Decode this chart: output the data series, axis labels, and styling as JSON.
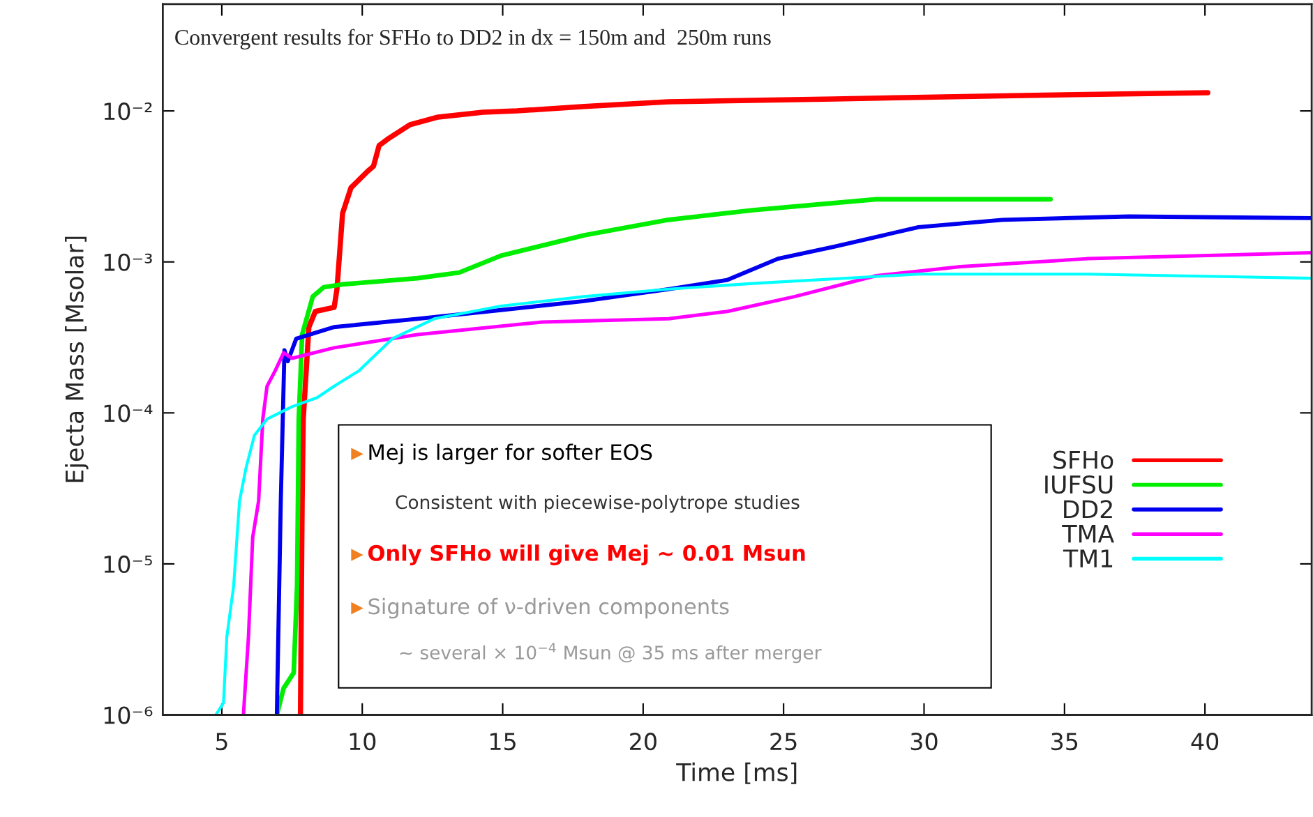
{
  "chart_data": {
    "type": "line",
    "title": "Convergent results for SFHo to DD2 in dx = 150m and  250m runs",
    "xlabel": "Time [ms]",
    "ylabel": "Ejecta Mass [Msolar]",
    "log": "y",
    "xlim": [
      2.9,
      43.8
    ],
    "ylim": [
      1e-06,
      0.051
    ],
    "xticks": [
      5,
      10,
      15,
      20,
      25,
      30,
      35,
      40
    ],
    "yticks": [
      {
        "value": 1e-06,
        "label": "10⁻⁶"
      },
      {
        "value": 1e-05,
        "label": "10⁻⁵"
      },
      {
        "value": 0.0001,
        "label": "10⁻⁴"
      },
      {
        "value": 0.001,
        "label": "10⁻³"
      },
      {
        "value": 0.01,
        "label": "10⁻²"
      }
    ],
    "grid": false,
    "legend": "bottom right",
    "marker": "none",
    "line_style": "solid",
    "series": [
      {
        "name": "SFHo",
        "color": "#ff0000",
        "x": [
          7.8,
          7.86,
          7.9,
          8.1,
          8.33,
          9.0,
          9.1,
          9.3,
          9.6,
          10.2,
          10.4,
          10.6,
          10.9,
          11.7,
          12.7,
          14.3,
          15.5,
          17.9,
          20.9,
          26.8,
          32.8,
          40.1
        ],
        "values": [
          1e-06,
          2.6e-05,
          9.1e-05,
          0.00037,
          0.00047,
          0.0005,
          0.00066,
          0.0021,
          0.0031,
          0.004,
          0.0043,
          0.0059,
          0.0065,
          0.0081,
          0.0091,
          0.0098,
          0.01,
          0.0107,
          0.0115,
          0.012,
          0.0126,
          0.0132
        ]
      },
      {
        "name": "IUFSU",
        "color": "#00ee00",
        "x": [
          6.96,
          7.2,
          7.56,
          7.68,
          7.74,
          7.86,
          8.24,
          8.63,
          9.29,
          11.96,
          13.45,
          14.94,
          17.9,
          20.9,
          23.9,
          28.3,
          31.3,
          34.5
        ],
        "values": [
          1e-06,
          1.5e-06,
          1.9e-06,
          7.1e-06,
          9.1e-05,
          0.00033,
          0.00059,
          0.00068,
          0.00071,
          0.00078,
          0.00085,
          0.0011,
          0.0015,
          0.0019,
          0.0022,
          0.0026,
          0.0026,
          0.0026
        ]
      },
      {
        "name": "DD2",
        "color": "#0000ee",
        "x": [
          6.96,
          7.1,
          7.23,
          7.35,
          7.65,
          8.99,
          11.96,
          14.94,
          17.9,
          20.9,
          23.0,
          24.8,
          26.8,
          29.8,
          32.8,
          37.3,
          43.8
        ],
        "values": [
          1e-06,
          2.6e-05,
          0.00026,
          0.00022,
          0.00031,
          0.00037,
          0.00042,
          0.00048,
          0.00055,
          0.00066,
          0.00076,
          0.00105,
          0.00126,
          0.0017,
          0.0019,
          0.002,
          0.00195
        ]
      },
      {
        "name": "TMA",
        "color": "#ff00ff",
        "x": [
          5.77,
          5.95,
          6.1,
          6.31,
          6.46,
          6.61,
          6.9,
          7.2,
          7.5,
          9.0,
          11.96,
          16.4,
          20.9,
          23.0,
          25.4,
          28.3,
          31.3,
          35.8,
          43.8
        ],
        "values": [
          1e-06,
          3.3e-06,
          1.5e-05,
          2.6e-05,
          9.1e-05,
          0.00015,
          0.00019,
          0.00025,
          0.00023,
          0.00027,
          0.00033,
          0.0004,
          0.00042,
          0.00047,
          0.00059,
          0.00081,
          0.00093,
          0.00105,
          0.00115
        ]
      },
      {
        "name": "TM1",
        "color": "#00ffff",
        "x": [
          4.79,
          5.06,
          5.18,
          5.42,
          5.63,
          5.86,
          6.16,
          6.61,
          7.5,
          8.39,
          8.99,
          9.88,
          11.07,
          12.56,
          14.94,
          17.9,
          20.9,
          23.9,
          29.8,
          35.8,
          43.8
        ],
        "values": [
          1e-06,
          1.2e-06,
          3.3e-06,
          7.1e-06,
          2.6e-05,
          4.3e-05,
          7.1e-05,
          9.1e-05,
          0.00011,
          0.000126,
          0.00015,
          0.00019,
          0.00031,
          0.00042,
          0.00051,
          0.00059,
          0.00066,
          0.00072,
          0.00083,
          0.00083,
          0.00078
        ]
      }
    ],
    "annotations": [
      "Mej is larger for softer EOS",
      "Consistent with piecewise-polytrope studies",
      "Only SFHo will give Mej ~ 0.01 Msun",
      "Signature of ν-driven components",
      "~ several × 10$^{−4}$ Msun @ 35 ms after merger"
    ]
  }
}
